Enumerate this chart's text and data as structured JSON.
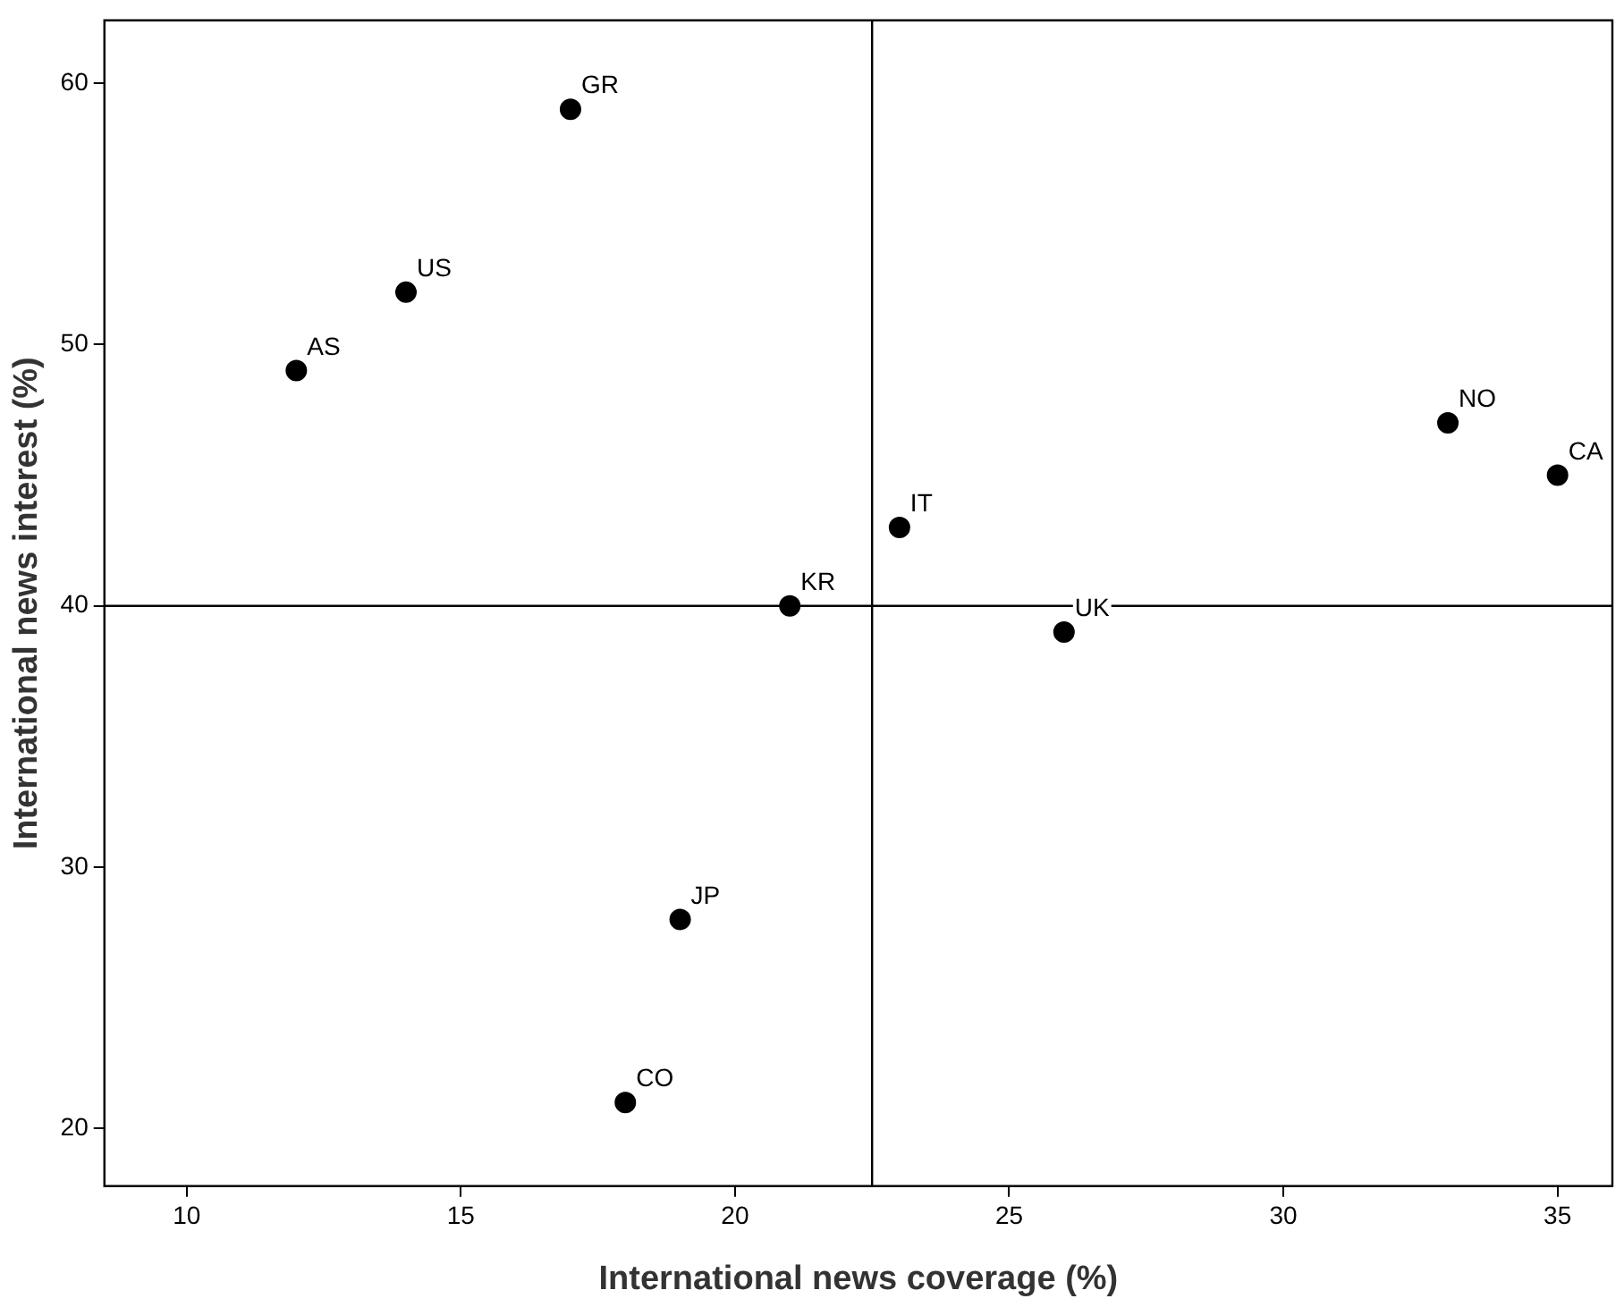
{
  "chart_data": {
    "type": "scatter",
    "xlabel": "International news coverage (%)",
    "ylabel": "International news interest (%)",
    "series": [
      {
        "color": "#000000",
        "x": [
          17,
          14,
          12,
          33,
          35,
          23,
          21,
          26,
          19,
          18
        ],
        "values": [
          59,
          52,
          49,
          47,
          45,
          43,
          40,
          39,
          28,
          21
        ]
      }
    ],
    "annotations": [
      {
        "text": "GR",
        "x": 17,
        "y": 59
      },
      {
        "text": "US",
        "x": 14,
        "y": 52
      },
      {
        "text": "AS",
        "x": 12,
        "y": 49
      },
      {
        "text": "NO",
        "x": 33,
        "y": 47
      },
      {
        "text": "CA",
        "x": 35,
        "y": 45
      },
      {
        "text": "IT",
        "x": 23,
        "y": 43
      },
      {
        "text": "KR",
        "x": 21,
        "y": 40
      },
      {
        "text": "UK",
        "x": 26,
        "y": 39
      },
      {
        "text": "JP",
        "x": 19,
        "y": 28
      },
      {
        "text": "CO",
        "x": 18,
        "y": 21
      }
    ],
    "ref_lines": [
      {
        "axis": "x",
        "value": 22.5
      },
      {
        "axis": "y",
        "value": 40
      }
    ],
    "xlim": [
      8.5,
      36
    ],
    "ylim": [
      17.8,
      62.4
    ],
    "xticks": [
      10,
      15,
      20,
      25,
      30,
      35
    ],
    "yticks": [
      20,
      30,
      40,
      50,
      60
    ],
    "marker": "circle",
    "grid": false,
    "legend": false
  }
}
